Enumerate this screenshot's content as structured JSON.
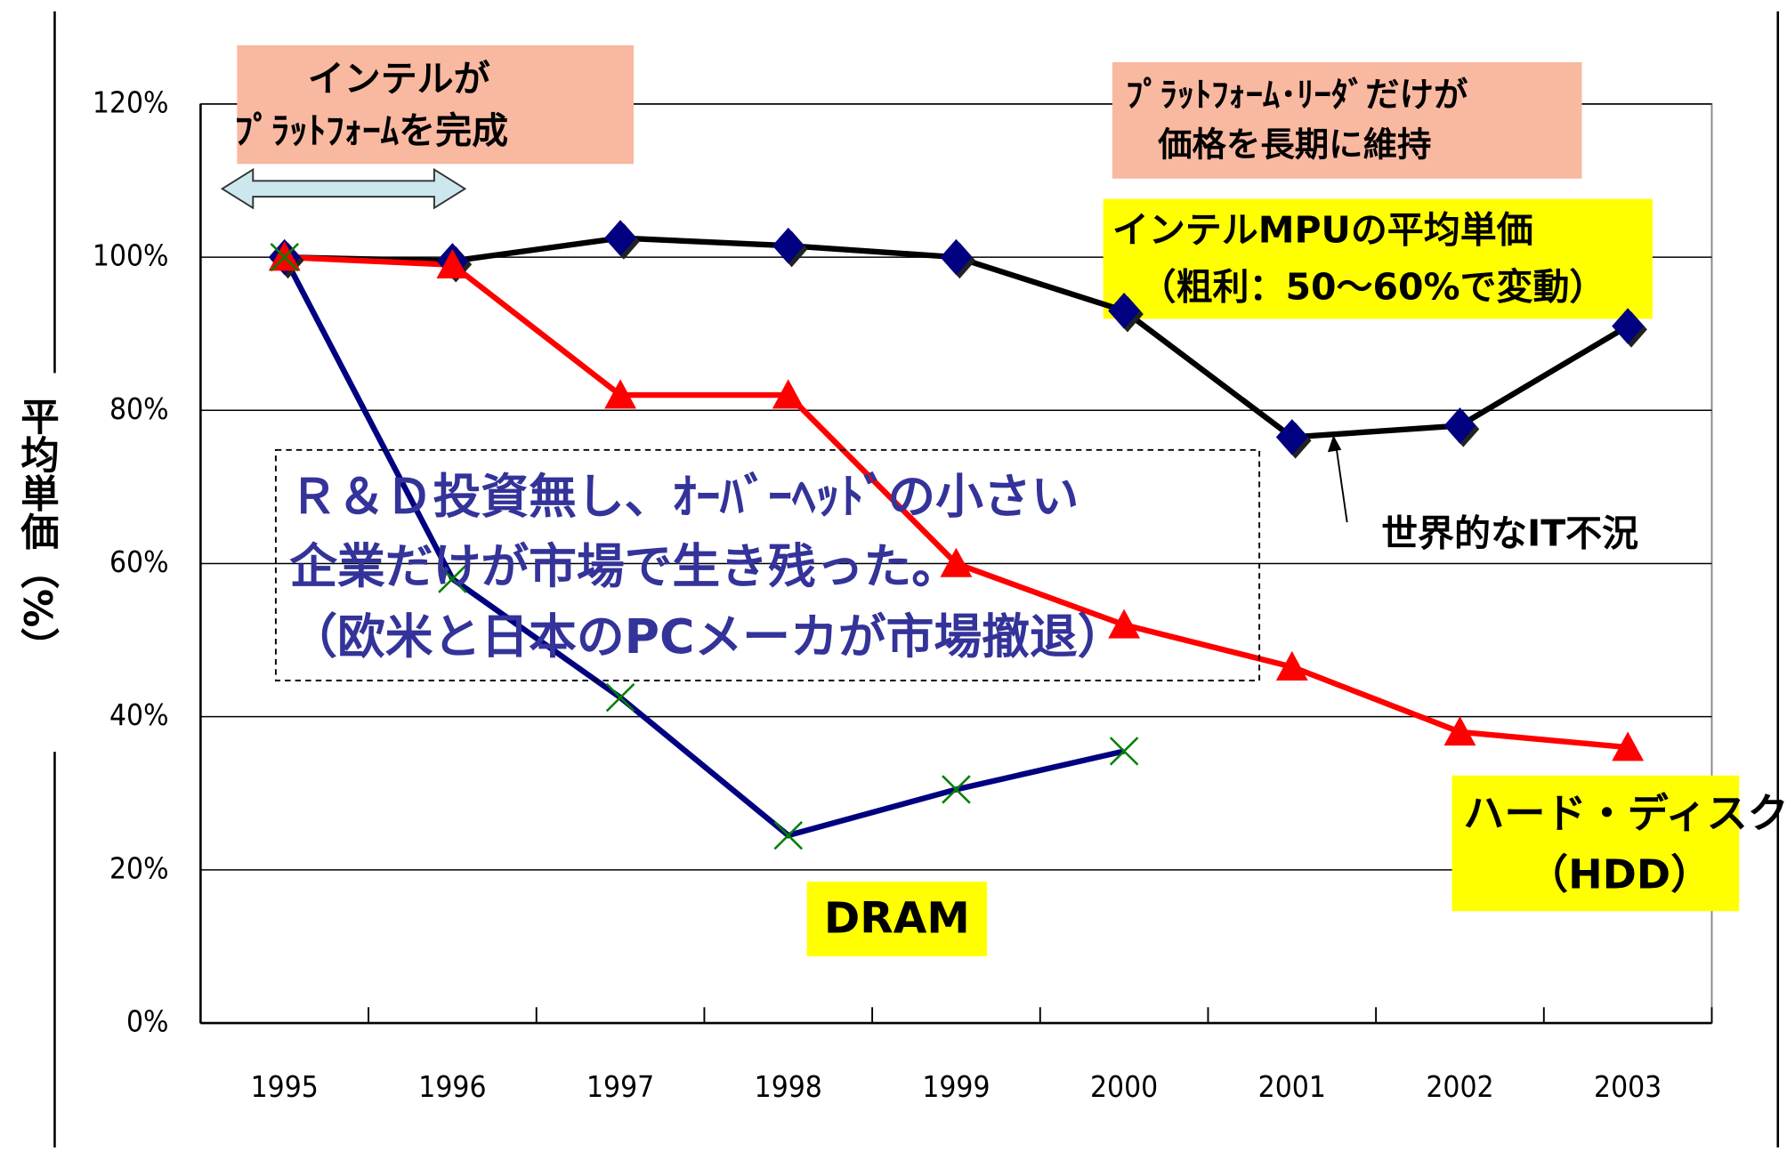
{
  "chart_data": {
    "type": "line",
    "ylabel": "平均単価（%）",
    "categories": [
      "1995",
      "1996",
      "1997",
      "1998",
      "1999",
      "2000",
      "2001",
      "2002",
      "2003"
    ],
    "series": [
      {
        "color": "#000000",
        "marker": "diamond",
        "marker_color": "#000080",
        "values": [
          100,
          99.5,
          102.5,
          101.5,
          100,
          93,
          76.5,
          78,
          91
        ]
      },
      {
        "color": "#ff0000",
        "marker": "triangle",
        "marker_color": "#ff0000",
        "values": [
          100,
          99,
          82,
          82,
          60,
          52,
          46.5,
          38,
          36
        ]
      },
      {
        "name": "DRAM",
        "color": "#000080",
        "marker": "x",
        "marker_color": "#008000",
        "values": [
          100,
          58,
          42.5,
          24.5,
          30.5,
          35.5,
          null,
          null,
          null
        ]
      }
    ],
    "ylim": [
      0,
      120
    ],
    "yticks": [
      {
        "value": 0,
        "label": "0%"
      },
      {
        "value": 20,
        "label": "20%"
      },
      {
        "value": 40,
        "label": "40%"
      },
      {
        "value": 60,
        "label": "60%"
      },
      {
        "value": 80,
        "label": "80%"
      },
      {
        "value": 100,
        "label": "100%"
      },
      {
        "value": 120,
        "label": "120%"
      }
    ],
    "grid": true,
    "annotations": [
      {
        "lines": [
          "インテルが",
          "ﾌﾟﾗｯﾄﾌｫｰﾑを完成"
        ]
      },
      {
        "lines": [
          "ﾌﾟﾗｯﾄﾌｫｰﾑ･ﾘｰﾀﾞだけが",
          "価格を長期に維持"
        ]
      },
      {
        "lines": [
          "インテルMPUの平均単価",
          "（粗利：50～60%で変動）"
        ]
      },
      {
        "lines": [
          "Ｒ＆Ｄ投資無し、ｵｰﾊﾞｰﾍｯﾄﾞの小さい",
          "企業だけが市場で生き残った。",
          "（欧米と日本のPCメーカが市場撤退）"
        ]
      },
      {
        "lines": [
          "世界的なIT不況"
        ]
      },
      {
        "lines": [
          "ハード・ディスク",
          "（HDD）"
        ]
      }
    ]
  }
}
